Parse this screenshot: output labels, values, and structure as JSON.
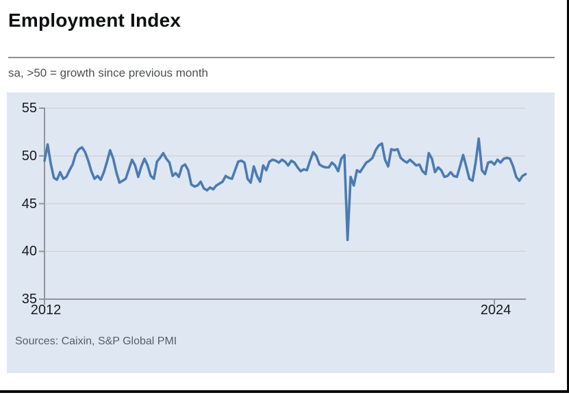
{
  "page": {
    "title": "Employment Index",
    "subtitle": "sa, >50 = growth since previous month",
    "source": "Sources: Caixin, S&P Global PMI"
  },
  "chart_data": {
    "type": "line",
    "title": "Employment Index",
    "subtitle": "sa, >50 = growth since previous month",
    "source": "Sources: Caixin, S&P Global PMI",
    "x_start_year": 2012,
    "points_per_year": 12,
    "x_ticks": [
      {
        "label": "2012",
        "month_index": 0
      },
      {
        "label": "2024",
        "month_index": 144
      }
    ],
    "y_ticks": [
      35,
      40,
      45,
      50,
      55
    ],
    "ylim": [
      35,
      55
    ],
    "xlabel": "",
    "ylabel": "",
    "grid": "horizontal",
    "legend": "none",
    "colors": {
      "line": "#4b7bb1",
      "plot_background": "#dfe7f3",
      "gridline": "#d2d5d2",
      "axis": "#8e959c",
      "tick_text": "#16191d"
    },
    "series": [
      {
        "name": "Employment Index",
        "values": [
          49.5,
          51.2,
          49.2,
          47.7,
          47.5,
          48.3,
          47.6,
          47.8,
          48.5,
          49.1,
          50.2,
          50.7,
          50.9,
          50.4,
          49.5,
          48.4,
          47.6,
          47.9,
          47.5,
          48.3,
          49.4,
          50.6,
          49.7,
          48.3,
          47.2,
          47.4,
          47.6,
          48.6,
          49.6,
          49.0,
          47.8,
          48.9,
          49.7,
          49.0,
          47.9,
          47.6,
          49.4,
          49.8,
          50.3,
          49.7,
          49.3,
          47.9,
          48.2,
          47.8,
          48.9,
          49.1,
          48.5,
          47.0,
          46.8,
          46.9,
          47.3,
          46.6,
          46.4,
          46.7,
          46.5,
          46.9,
          47.1,
          47.3,
          47.9,
          47.7,
          47.6,
          48.5,
          49.4,
          49.5,
          49.3,
          47.6,
          47.2,
          48.9,
          47.9,
          47.3,
          49.0,
          48.5,
          49.4,
          49.6,
          49.5,
          49.3,
          49.6,
          49.4,
          49.0,
          49.5,
          49.3,
          48.8,
          48.4,
          48.6,
          48.5,
          49.5,
          50.4,
          50.0,
          49.1,
          48.9,
          48.8,
          48.8,
          49.3,
          49.0,
          48.4,
          49.7,
          50.1,
          41.2,
          47.8,
          46.9,
          48.5,
          48.3,
          48.8,
          49.3,
          49.5,
          49.8,
          50.6,
          51.1,
          51.3,
          49.6,
          48.9,
          50.7,
          50.6,
          50.7,
          49.8,
          49.5,
          49.3,
          49.6,
          49.3,
          49.0,
          49.1,
          48.4,
          48.1,
          50.3,
          49.7,
          48.3,
          48.8,
          48.5,
          47.8,
          47.9,
          48.3,
          47.9,
          47.8,
          48.9,
          50.1,
          48.9,
          47.6,
          47.4,
          49.3,
          51.8,
          48.5,
          48.1,
          49.3,
          49.4,
          49.1,
          49.6,
          49.3,
          49.7,
          49.8,
          49.7,
          48.9,
          47.8,
          47.4,
          47.9,
          48.1
        ]
      }
    ]
  }
}
